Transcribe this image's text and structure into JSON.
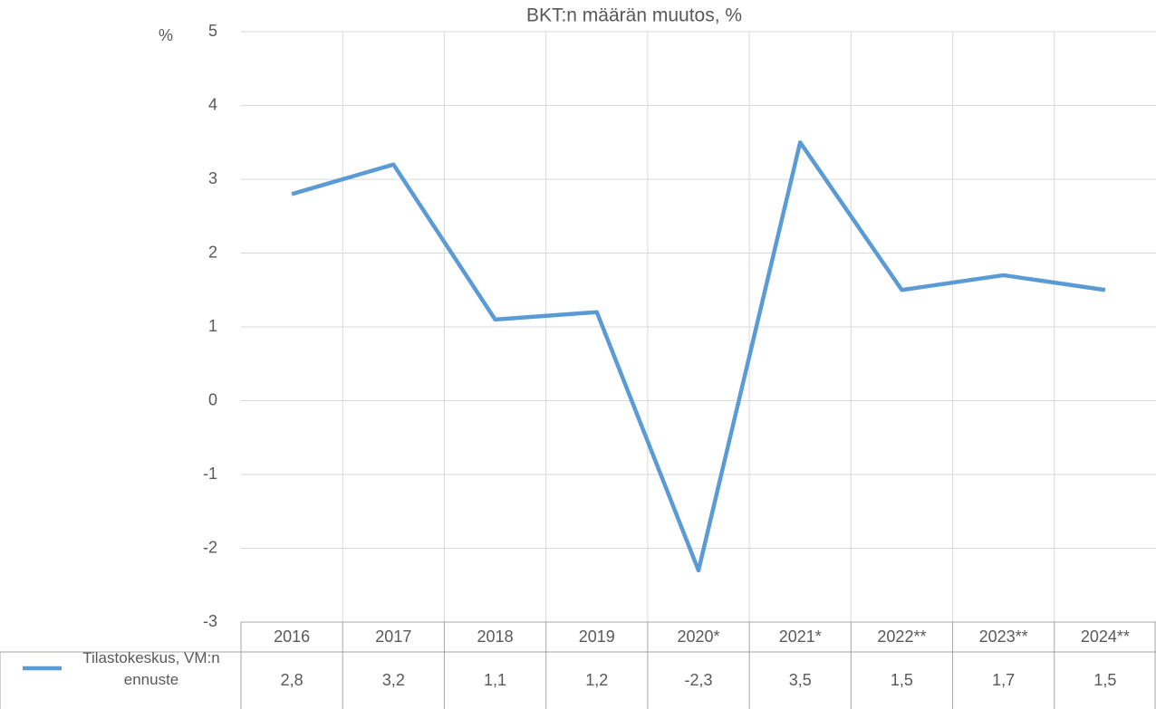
{
  "chart_data": {
    "type": "line",
    "title": "BKT:n määrän muutos, %",
    "y_label": "%",
    "categories": [
      "2016",
      "2017",
      "2018",
      "2019",
      "2020*",
      "2021*",
      "2022**",
      "2023**",
      "2024**"
    ],
    "series": [
      {
        "name": "Tilastokeskus, VM:n ennuste",
        "color": "#5b9bd5",
        "values": [
          2.8,
          3.2,
          1.1,
          1.2,
          -2.3,
          3.5,
          1.5,
          1.7,
          1.5
        ],
        "value_labels": [
          "2,8",
          "3,2",
          "1,1",
          "1,2",
          "-2,3",
          "3,5",
          "1,5",
          "1,7",
          "1,5"
        ]
      }
    ],
    "ylim": [
      -3,
      5
    ],
    "yticks": [
      -3,
      -2,
      -1,
      0,
      1,
      2,
      3,
      4,
      5
    ],
    "grid": true,
    "data_table": true
  }
}
